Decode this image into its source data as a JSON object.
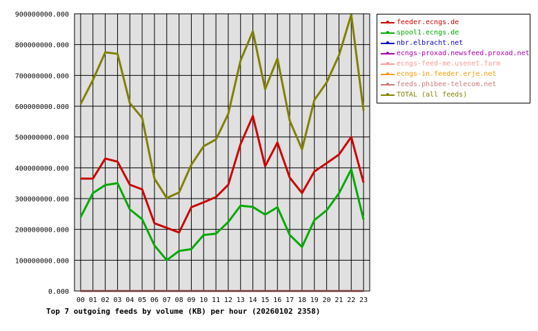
{
  "chart_data": {
    "type": "line",
    "title": "Top 7 outgoing feeds by volume (KB) per hour (20260102 2358)",
    "xlabel": "",
    "ylabel": "",
    "categories": [
      "00",
      "01",
      "02",
      "03",
      "04",
      "05",
      "06",
      "07",
      "08",
      "09",
      "10",
      "11",
      "12",
      "13",
      "14",
      "15",
      "16",
      "17",
      "18",
      "19",
      "20",
      "21",
      "22",
      "23"
    ],
    "ylim": [
      0,
      900000000
    ],
    "yticks": [
      {
        "value": 0,
        "label": "0.000"
      },
      {
        "value": 100000000,
        "label": "100000000.000"
      },
      {
        "value": 200000000,
        "label": "200000000.000"
      },
      {
        "value": 300000000,
        "label": "300000000.000"
      },
      {
        "value": 400000000,
        "label": "400000000.000"
      },
      {
        "value": 500000000,
        "label": "500000000.000"
      },
      {
        "value": 600000000,
        "label": "600000000.000"
      },
      {
        "value": 700000000,
        "label": "700000000.000"
      },
      {
        "value": 800000000,
        "label": "800000000.000"
      },
      {
        "value": 900000000,
        "label": "900000000.000"
      }
    ],
    "grid": true,
    "legend_position": "right",
    "series": [
      {
        "name": "feeder.ecngs.de",
        "color": "#cc0000",
        "values": [
          365000000,
          365000000,
          430000000,
          420000000,
          345000000,
          330000000,
          220000000,
          205000000,
          190000000,
          272000000,
          288000000,
          305000000,
          345000000,
          477000000,
          568000000,
          405000000,
          482000000,
          368000000,
          318000000,
          388000000,
          415000000,
          443000000,
          500000000,
          352000000
        ]
      },
      {
        "name": "spool1.ecngs.de",
        "color": "#00aa00",
        "values": [
          240000000,
          318000000,
          344000000,
          350000000,
          265000000,
          233000000,
          148000000,
          100000000,
          130000000,
          136000000,
          182000000,
          186000000,
          224000000,
          277000000,
          273000000,
          248000000,
          272000000,
          182000000,
          143000000,
          230000000,
          262000000,
          317000000,
          395000000,
          232000000
        ]
      },
      {
        "name": "nbr.elbracht.net",
        "color": "#0000cc",
        "values": [
          0,
          0,
          0,
          0,
          0,
          0,
          0,
          0,
          0,
          0,
          0,
          0,
          0,
          0,
          0,
          0,
          0,
          0,
          0,
          0,
          0,
          0,
          0,
          0
        ]
      },
      {
        "name": "ecngs-proxad.newsfeed.proxad.net",
        "color": "#aa00aa",
        "values": [
          0,
          0,
          0,
          0,
          0,
          0,
          0,
          0,
          0,
          0,
          0,
          0,
          0,
          0,
          0,
          0,
          0,
          0,
          0,
          0,
          0,
          0,
          0,
          0
        ]
      },
      {
        "name": "ecngs-feed-me.usenet.farm",
        "color": "#ff9999",
        "values": [
          0,
          0,
          0,
          0,
          0,
          0,
          0,
          0,
          0,
          0,
          0,
          0,
          0,
          0,
          0,
          0,
          0,
          0,
          0,
          0,
          0,
          0,
          0,
          0
        ]
      },
      {
        "name": "ecngs-in.feeder.erje.net",
        "color": "#ff9900",
        "values": [
          0,
          0,
          0,
          0,
          0,
          0,
          0,
          0,
          0,
          0,
          0,
          0,
          0,
          0,
          0,
          0,
          0,
          0,
          0,
          0,
          0,
          0,
          0,
          0
        ]
      },
      {
        "name": "feeds.phibee-telecom.net",
        "color": "#cc7777",
        "values": [
          0,
          0,
          0,
          0,
          0,
          0,
          0,
          0,
          0,
          0,
          0,
          0,
          0,
          0,
          0,
          0,
          0,
          0,
          0,
          0,
          0,
          0,
          0,
          0
        ]
      },
      {
        "name": "TOTAL (all feeds)",
        "color": "#808000",
        "values": [
          607000000,
          685000000,
          775000000,
          770000000,
          610000000,
          562000000,
          365000000,
          302000000,
          320000000,
          410000000,
          470000000,
          492000000,
          575000000,
          748000000,
          843000000,
          655000000,
          755000000,
          553000000,
          460000000,
          620000000,
          677000000,
          765000000,
          897000000,
          585000000
        ]
      }
    ]
  }
}
